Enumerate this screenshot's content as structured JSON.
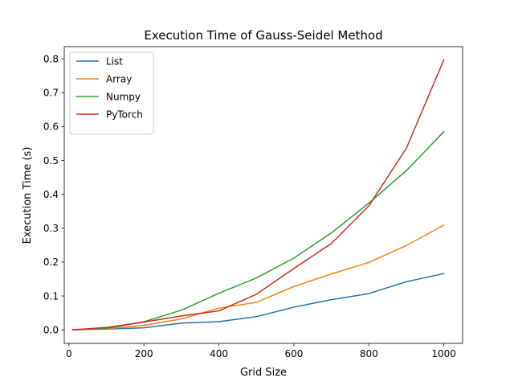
{
  "chart_data": {
    "type": "line",
    "title": "Execution Time of Gauss-Seidel Method",
    "xlabel": "Grid Size",
    "ylabel": "Execution Time (s)",
    "xlim": [
      -12.5,
      1050
    ],
    "ylim": [
      -0.04,
      0.836
    ],
    "xticks": [
      0,
      200,
      400,
      600,
      800,
      1000
    ],
    "yticks": [
      0.0,
      0.1,
      0.2,
      0.3,
      0.4,
      0.5,
      0.6,
      0.7,
      0.8
    ],
    "xtick_labels": [
      "0",
      "200",
      "400",
      "600",
      "800",
      "1000"
    ],
    "ytick_labels": [
      "0.0",
      "0.1",
      "0.2",
      "0.3",
      "0.4",
      "0.5",
      "0.6",
      "0.7",
      "0.8"
    ],
    "legend_position": "top-left",
    "grid": false,
    "x": [
      10,
      100,
      200,
      300,
      400,
      500,
      600,
      700,
      800,
      900,
      1000
    ],
    "series": [
      {
        "name": "List",
        "color": "#1f77b4",
        "values": [
          0.0,
          0.002,
          0.006,
          0.02,
          0.024,
          0.039,
          0.067,
          0.089,
          0.107,
          0.142,
          0.166
        ]
      },
      {
        "name": "Array",
        "color": "#ff7f0e",
        "values": [
          0.0,
          0.003,
          0.013,
          0.032,
          0.064,
          0.081,
          0.128,
          0.165,
          0.199,
          0.249,
          0.309
        ]
      },
      {
        "name": "Numpy",
        "color": "#2ca02c",
        "values": [
          0.0,
          0.004,
          0.024,
          0.058,
          0.108,
          0.153,
          0.212,
          0.286,
          0.374,
          0.47,
          0.585
        ]
      },
      {
        "name": "PyTorch",
        "color": "#d62728",
        "values": [
          0.0,
          0.007,
          0.023,
          0.041,
          0.056,
          0.105,
          0.181,
          0.255,
          0.366,
          0.536,
          0.797
        ]
      }
    ]
  }
}
